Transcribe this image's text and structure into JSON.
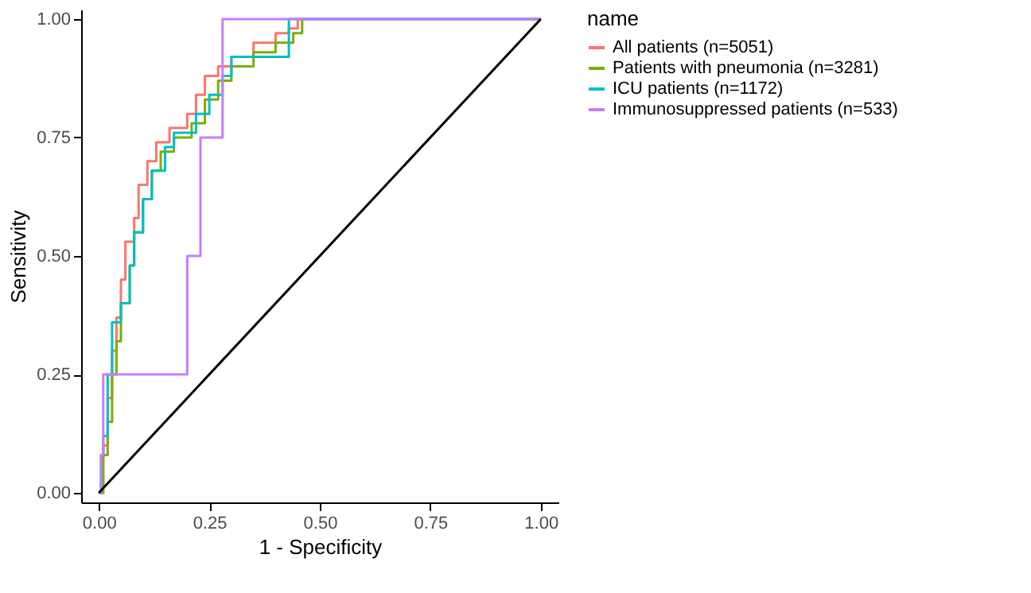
{
  "chart_data": {
    "type": "step",
    "xlabel": "1 - Specificity",
    "ylabel": "Sensitivity",
    "legend_title": "name",
    "legend": "right",
    "grid": false,
    "xlim": [
      -0.04,
      1.04
    ],
    "ylim": [
      -0.02,
      1.02
    ],
    "xticks": [
      {
        "value": 0,
        "label": "0.00"
      },
      {
        "value": 0.25,
        "label": "0.25"
      },
      {
        "value": 0.5,
        "label": "0.50"
      },
      {
        "value": 0.75,
        "label": "0.75"
      },
      {
        "value": 1,
        "label": "1.00"
      }
    ],
    "yticks": [
      {
        "value": 0,
        "label": "0.00"
      },
      {
        "value": 0.25,
        "label": "0.25"
      },
      {
        "value": 0.5,
        "label": "0.50"
      },
      {
        "value": 0.75,
        "label": "0.75"
      },
      {
        "value": 1,
        "label": "1.00"
      }
    ],
    "series": [
      {
        "name": "All patients (n=5051)",
        "color": "#f8766d",
        "x": [
          0,
          0.01,
          0.02,
          0.03,
          0.04,
          0.05,
          0.06,
          0.08,
          0.09,
          0.11,
          0.13,
          0.16,
          0.2,
          0.22,
          0.24,
          0.27,
          0.3,
          0.35,
          0.4,
          0.43,
          0.45,
          1
        ],
        "values": [
          0,
          0.1,
          0.2,
          0.3,
          0.37,
          0.45,
          0.53,
          0.58,
          0.65,
          0.7,
          0.74,
          0.77,
          0.8,
          0.84,
          0.88,
          0.9,
          0.92,
          0.95,
          0.97,
          0.98,
          1.0,
          1.0
        ]
      },
      {
        "name": "Patients with pneumonia (n=3281)",
        "color": "#7cae00",
        "x": [
          0,
          0.01,
          0.02,
          0.03,
          0.04,
          0.05,
          0.07,
          0.08,
          0.1,
          0.12,
          0.14,
          0.17,
          0.21,
          0.24,
          0.27,
          0.3,
          0.35,
          0.4,
          0.44,
          0.46,
          1
        ],
        "values": [
          0,
          0.08,
          0.15,
          0.25,
          0.32,
          0.4,
          0.48,
          0.55,
          0.62,
          0.68,
          0.72,
          0.75,
          0.78,
          0.83,
          0.87,
          0.9,
          0.93,
          0.95,
          0.97,
          1.0,
          1.0
        ]
      },
      {
        "name": "ICU patients (n=1172)",
        "color": "#00bfc4",
        "x": [
          0,
          0.005,
          0.01,
          0.02,
          0.03,
          0.05,
          0.07,
          0.08,
          0.1,
          0.12,
          0.15,
          0.17,
          0.22,
          0.25,
          0.28,
          0.3,
          0.43,
          1
        ],
        "values": [
          0,
          0.08,
          0.12,
          0.25,
          0.36,
          0.4,
          0.48,
          0.55,
          0.62,
          0.68,
          0.73,
          0.76,
          0.8,
          0.84,
          0.88,
          0.92,
          1.0,
          1.0
        ]
      },
      {
        "name": "Immunosuppressed patients (n=533)",
        "color": "#c77cff",
        "x": [
          0,
          0.005,
          0.01,
          0.2,
          0.23,
          0.28,
          1
        ],
        "values": [
          0,
          0.08,
          0.25,
          0.5,
          0.75,
          1.0,
          1.0
        ]
      },
      {
        "type": "line",
        "color": "#000000",
        "x": [
          0,
          1
        ],
        "values": [
          0,
          1
        ]
      }
    ]
  }
}
